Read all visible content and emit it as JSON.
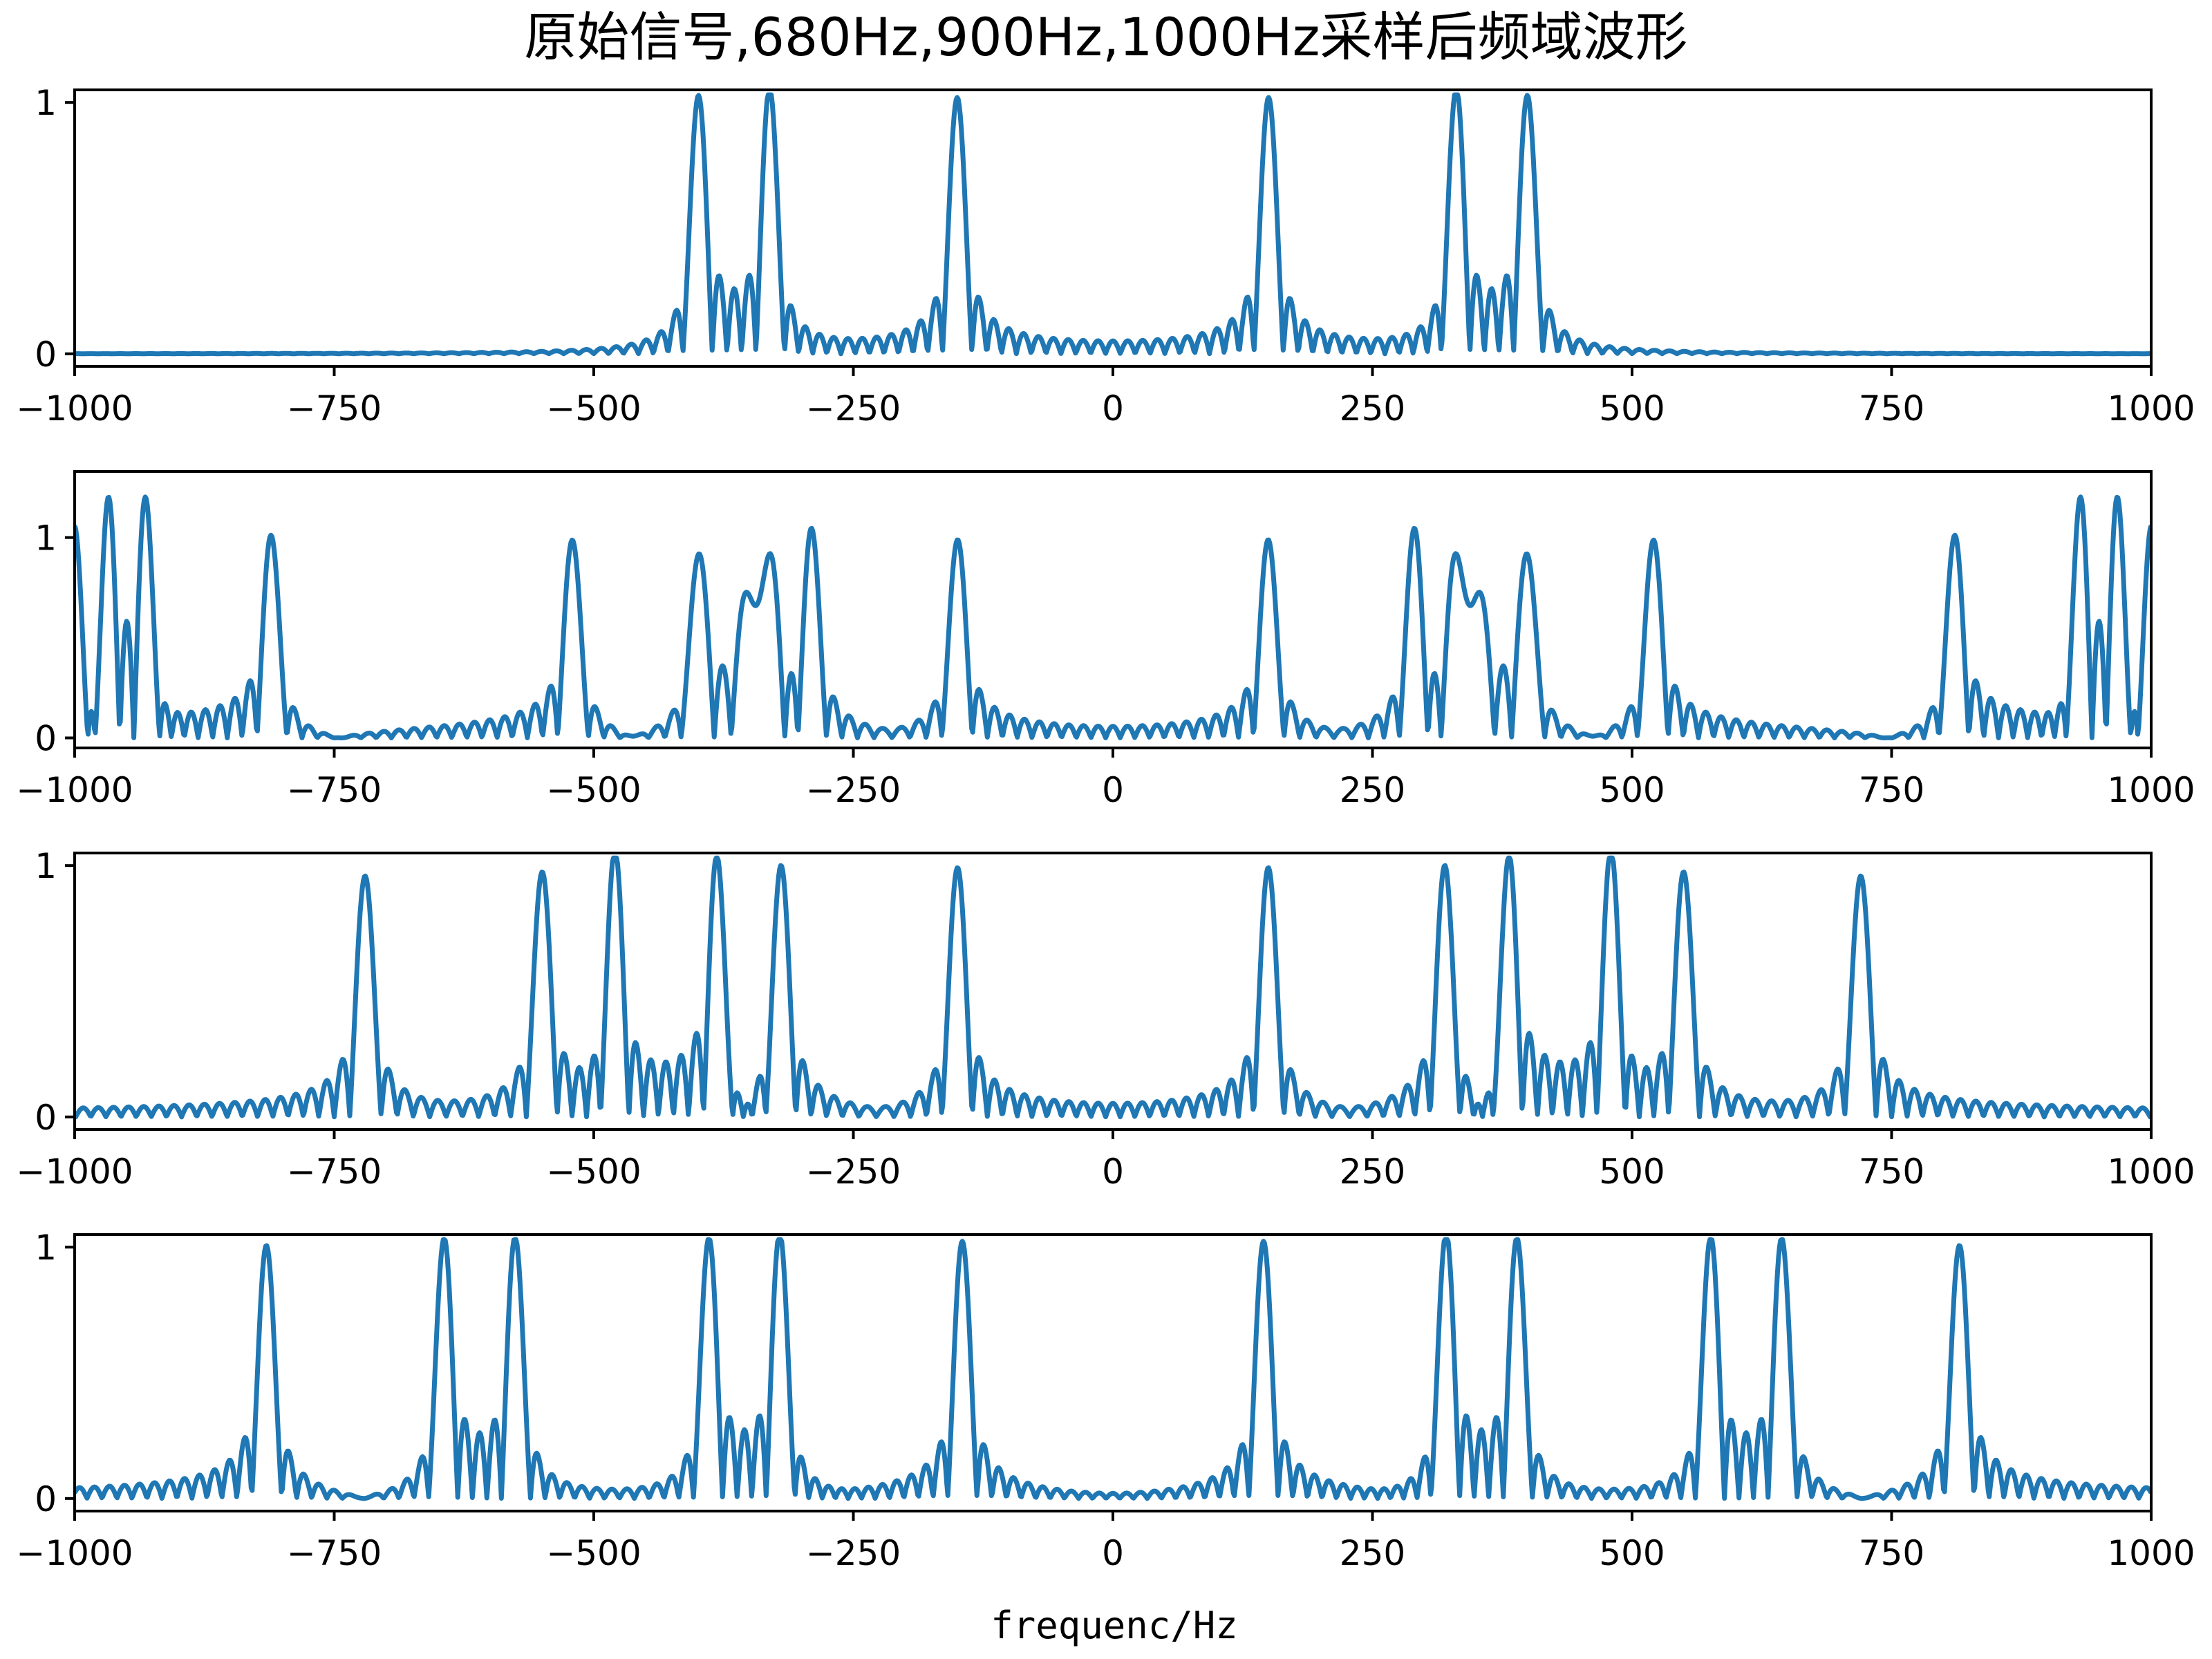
{
  "figure_title": "原始信号,680Hz,900Hz,1000Hz采样后频域波形",
  "xlabel": "frequenc/Hz",
  "colors": {
    "line": "#1f77b4",
    "axes": "#000000",
    "background": "#ffffff"
  },
  "chart_data": [
    {
      "type": "line",
      "title": "",
      "subplot": 1,
      "xlim": [
        -1000,
        1000
      ],
      "ylim": [
        -0.05,
        1.05
      ],
      "xticks": [
        -1000,
        -750,
        -500,
        -250,
        0,
        250,
        500,
        750,
        1000
      ],
      "xtick_labels": [
        "−1000",
        "−750",
        "−500",
        "−250",
        "0",
        "250",
        "500",
        "750",
        "1000"
      ],
      "yticks": [
        0,
        1
      ],
      "ytick_labels": [
        "0",
        "1"
      ],
      "grid": false,
      "sinc_halfwidth_hz": 14.5,
      "main_peaks_hz": [
        -400,
        -330,
        -150,
        150,
        330,
        400
      ],
      "series": [
        {
          "values": []
        }
      ]
    },
    {
      "type": "line",
      "title": "",
      "subplot": 2,
      "xlim": [
        -1000,
        1000
      ],
      "ylim": [
        -0.05,
        1.33
      ],
      "xticks": [
        -1000,
        -750,
        -500,
        -250,
        0,
        250,
        500,
        750,
        1000
      ],
      "xtick_labels": [
        "−1000",
        "−750",
        "−500",
        "−250",
        "0",
        "250",
        "500",
        "750",
        "1000"
      ],
      "yticks": [
        0,
        1
      ],
      "ytick_labels": [
        "0",
        "1"
      ],
      "grid": false,
      "sample_rate_hz": 680,
      "sinc_halfwidth_hz": 14.5,
      "main_peaks_hz": [
        -1000,
        -970,
        -930,
        -810,
        -520,
        -400,
        -350,
        -330,
        -290,
        -150,
        150,
        290,
        330,
        350,
        400,
        520,
        810,
        930,
        970,
        1000
      ],
      "series": [
        {
          "values": []
        }
      ]
    },
    {
      "type": "line",
      "title": "",
      "subplot": 3,
      "xlim": [
        -1000,
        1000
      ],
      "ylim": [
        -0.05,
        1.05
      ],
      "xticks": [
        -1000,
        -750,
        -500,
        -250,
        0,
        250,
        500,
        750,
        1000
      ],
      "xtick_labels": [
        "−1000",
        "−750",
        "−500",
        "−250",
        "0",
        "250",
        "500",
        "750",
        "1000"
      ],
      "yticks": [
        0,
        1
      ],
      "ytick_labels": [
        "0",
        "1"
      ],
      "grid": false,
      "sample_rate_hz": 900,
      "sinc_halfwidth_hz": 14.5,
      "main_peaks_hz": [
        -720,
        -550,
        -480,
        -380,
        -320,
        -150,
        150,
        320,
        380,
        480,
        550,
        720
      ],
      "series": [
        {
          "values": []
        }
      ]
    },
    {
      "type": "line",
      "title": "",
      "subplot": 4,
      "xlim": [
        -1000,
        1000
      ],
      "ylim": [
        -0.05,
        1.05
      ],
      "xticks": [
        -1000,
        -750,
        -500,
        -250,
        0,
        250,
        500,
        750,
        1000
      ],
      "xtick_labels": [
        "−1000",
        "−750",
        "−500",
        "−250",
        "0",
        "250",
        "500",
        "750",
        "1000"
      ],
      "yticks": [
        0,
        1
      ],
      "ytick_labels": [
        "0",
        "1"
      ],
      "grid": false,
      "sample_rate_hz": 1000,
      "sinc_halfwidth_hz": 14.5,
      "main_peaks_hz": [
        -815,
        -645,
        -575,
        -390,
        -320,
        -145,
        145,
        320,
        390,
        575,
        645,
        815
      ],
      "series": [
        {
          "values": []
        }
      ]
    }
  ]
}
